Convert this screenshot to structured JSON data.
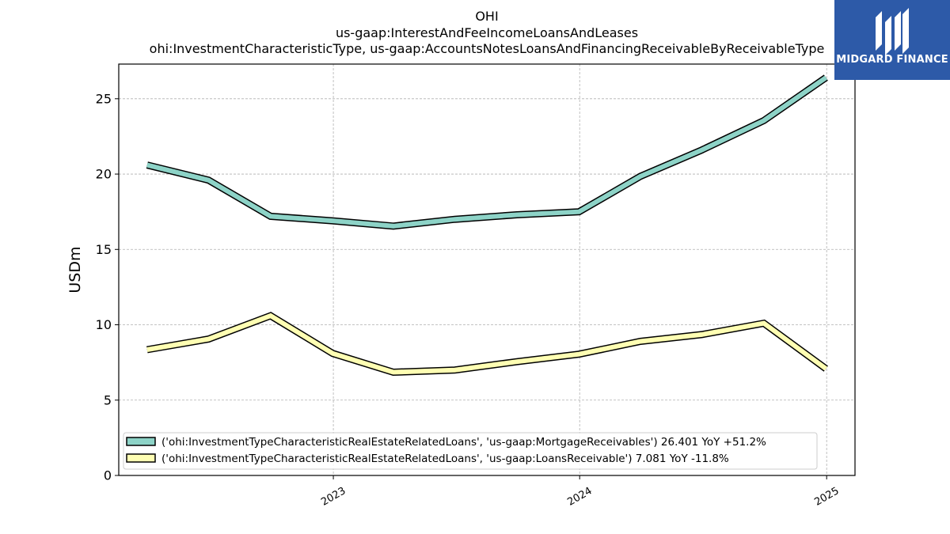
{
  "chart_data": {
    "type": "line",
    "title": [
      "OHI",
      "us-gaap:InterestAndFeeIncomeLoansAndLeases",
      "ohi:InvestmentCharacteristicType, us-gaap:AccountsNotesLoansAndFinancingReceivableByReceivableType"
    ],
    "ylabel": "USDm",
    "xlabel": "",
    "ylim": [
      0,
      27.3
    ],
    "xlim": [
      "2022-02-17",
      "2025-02-12"
    ],
    "yticks": [
      0,
      5,
      10,
      15,
      20,
      25
    ],
    "xticks": [
      {
        "date": "2023-01-01",
        "label": "2023"
      },
      {
        "date": "2024-01-01",
        "label": "2024"
      },
      {
        "date": "2025-01-01",
        "label": "2025"
      }
    ],
    "grid": true,
    "legend_position": "lower-left",
    "x": [
      "2022-03-31",
      "2022-06-30",
      "2022-09-30",
      "2022-12-31",
      "2023-03-31",
      "2023-06-30",
      "2023-09-30",
      "2023-12-31",
      "2024-03-31",
      "2024-06-30",
      "2024-09-30",
      "2024-12-31"
    ],
    "series": [
      {
        "name": "('ohi:InvestmentTypeCharacteristicRealEstateRelatedLoans', 'us-gaap:MortgageReceivables') 26.401 YoY +51.2%",
        "color": "#8dd3c7",
        "values": [
          20.6,
          19.6,
          17.2,
          16.9,
          16.55,
          17.0,
          17.3,
          17.5,
          19.85,
          21.6,
          23.55,
          26.4
        ]
      },
      {
        "name": "('ohi:InvestmentTypeCharacteristicRealEstateRelatedLoans', 'us-gaap:LoansReceivable') 7.081 YoY -11.8%",
        "color": "#ffffb3",
        "values": [
          8.35,
          9.05,
          10.6,
          8.1,
          6.85,
          7.0,
          7.55,
          8.05,
          8.9,
          9.35,
          10.1,
          7.08
        ]
      }
    ]
  },
  "logo": {
    "text": "MIDGARD FINANCE"
  }
}
